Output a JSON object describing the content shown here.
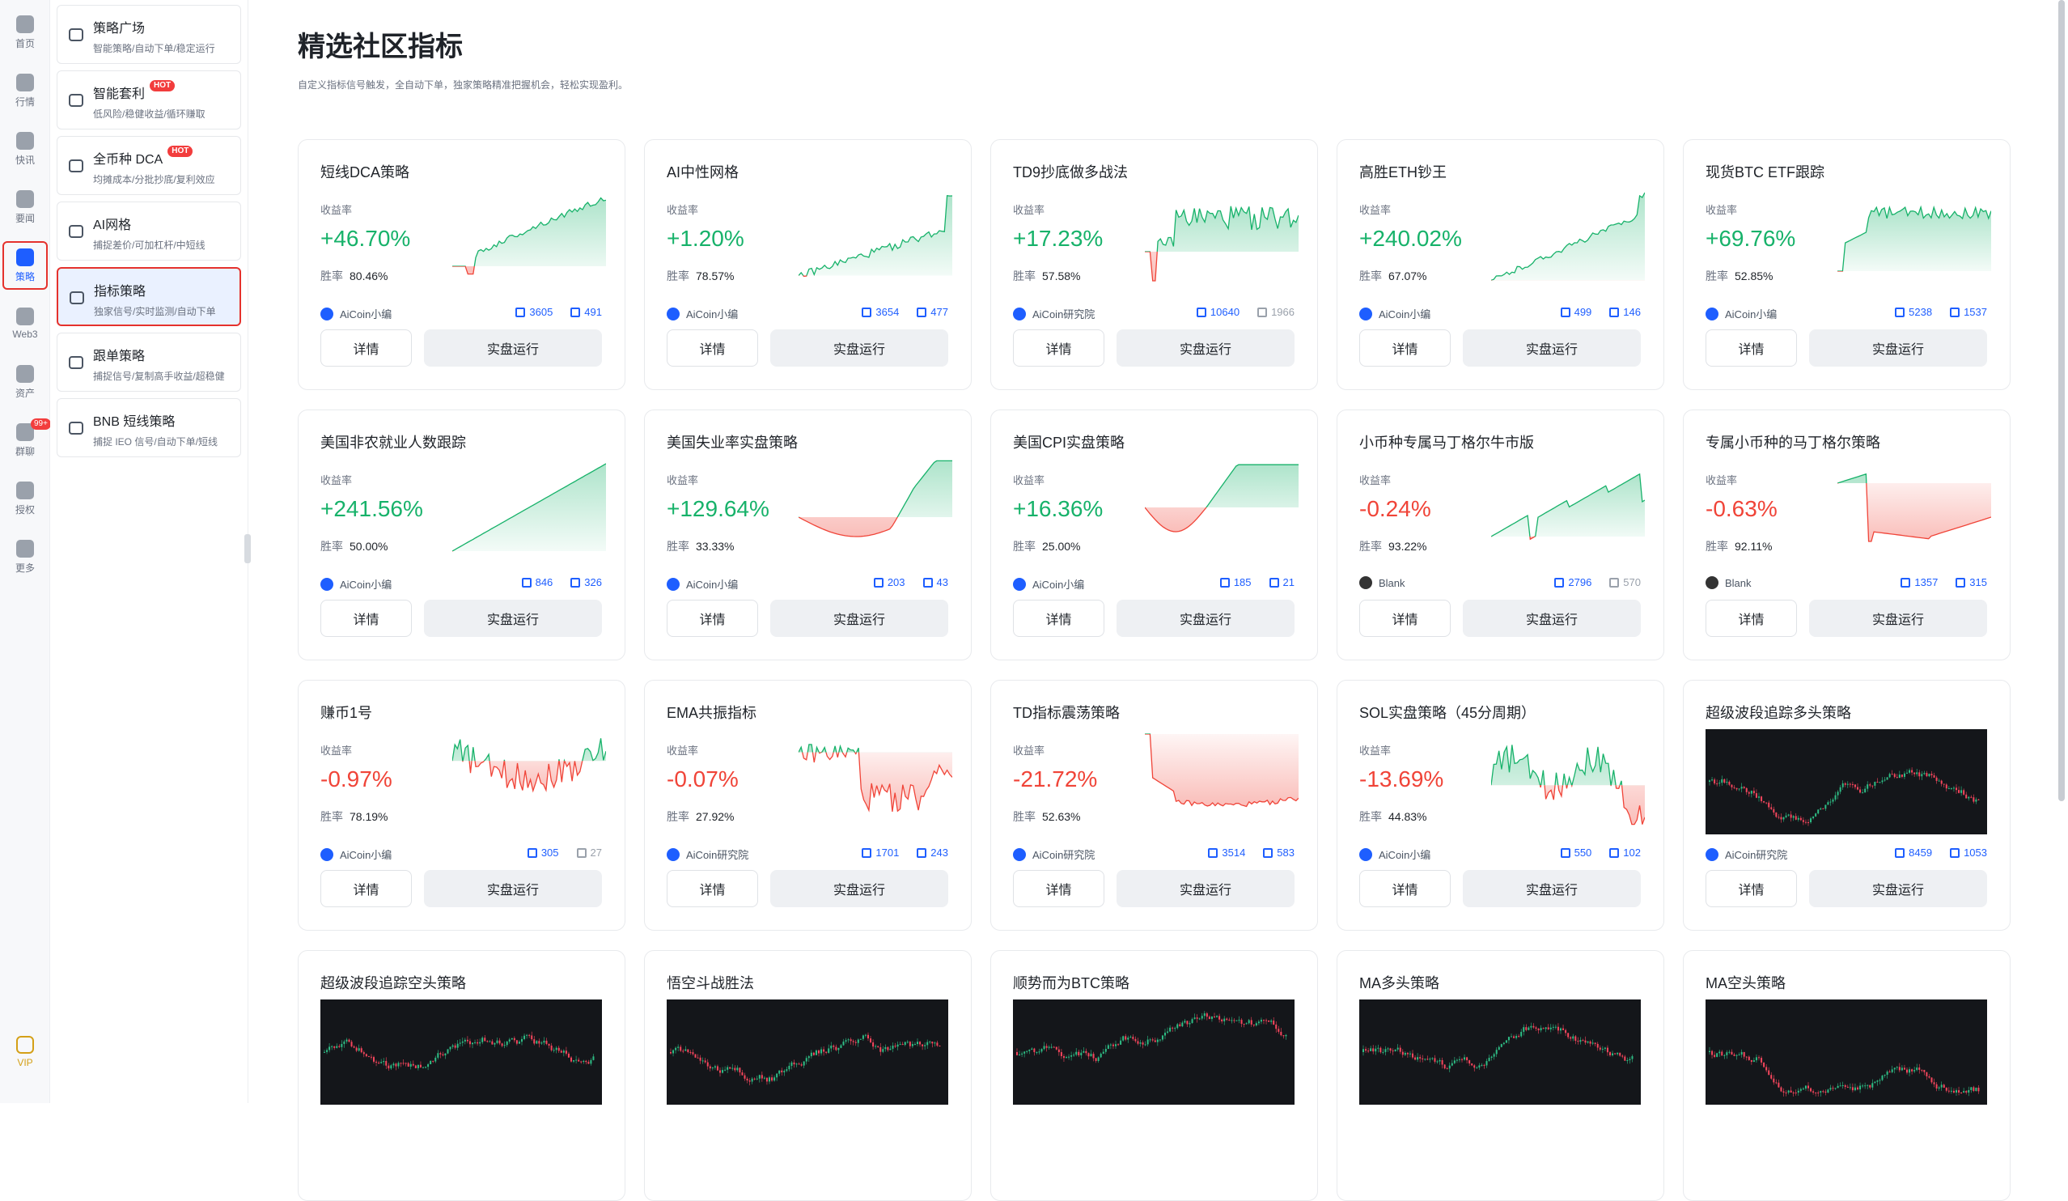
{
  "rail": [
    {
      "label": "首页",
      "icon": "home-icon"
    },
    {
      "label": "行情",
      "icon": "market-icon"
    },
    {
      "label": "快讯",
      "icon": "flash-news-icon"
    },
    {
      "label": "要闻",
      "icon": "news-icon"
    },
    {
      "label": "策略",
      "icon": "robot-icon",
      "active": true
    },
    {
      "label": "Web3",
      "icon": "web3-icon"
    },
    {
      "label": "资产",
      "icon": "wallet-icon"
    },
    {
      "label": "群聊",
      "icon": "chat-icon",
      "badge": "99+"
    },
    {
      "label": "授权",
      "icon": "auth-icon"
    },
    {
      "label": "更多",
      "icon": "more-icon"
    }
  ],
  "vip_label": "VIP",
  "submenu": [
    {
      "title": "策略广场",
      "sub": "智能策略/自动下单/稳定运行",
      "hot": false
    },
    {
      "title": "智能套利",
      "sub": "低风险/稳健收益/循环赚取",
      "hot": true
    },
    {
      "title": "全币种 DCA",
      "sub": "均摊成本/分批抄底/复利效应",
      "hot": true
    },
    {
      "title": "AI网格",
      "sub": "捕捉差价/可加杠杆/中短线",
      "hot": false
    },
    {
      "title": "指标策略",
      "sub": "独家信号/实时监测/自动下单",
      "hot": false,
      "active": true
    },
    {
      "title": "跟单策略",
      "sub": "捕捉信号/复制高手收益/超稳健",
      "hot": false
    },
    {
      "title": "BNB 短线策略",
      "sub": "捕捉 IEO 信号/自动下单/短线",
      "hot": false
    }
  ],
  "hot_label": "HOT",
  "page": {
    "title": "精选社区指标",
    "desc": "自定义指标信号触发，全自动下单，独家策略精准把握机会，轻松实现盈利。"
  },
  "labels": {
    "yield": "收益率",
    "win": "胜率",
    "detail": "详情",
    "run": "实盘运行"
  },
  "colors": {
    "up": "#17b26a",
    "down": "#f04438",
    "accent": "#1e5eff"
  },
  "cards": [
    {
      "name": "短线DCA策略",
      "rate": "+46.70%",
      "dir": "up",
      "win": "80.46%",
      "author": "AiCoin小编",
      "s1": "3605",
      "s2": "491",
      "s2_grey": false,
      "chart": "area",
      "shape": "dipRise"
    },
    {
      "name": "AI中性网格",
      "rate": "+1.20%",
      "dir": "up",
      "win": "78.57%",
      "author": "AiCoin小编",
      "s1": "3654",
      "s2": "477",
      "s2_grey": false,
      "chart": "area",
      "shape": "slowRise"
    },
    {
      "name": "TD9抄底做多战法",
      "rate": "+17.23%",
      "dir": "up",
      "win": "57.58%",
      "author": "AiCoin研究院",
      "s1": "10640",
      "s2": "1966",
      "s2_grey": true,
      "chart": "area",
      "shape": "jumpFlat"
    },
    {
      "name": "高胜ETH钞王",
      "rate": "+240.02%",
      "dir": "up",
      "win": "67.07%",
      "author": "AiCoin小编",
      "s1": "499",
      "s2": "146",
      "s2_grey": false,
      "chart": "area",
      "shape": "steadyRise"
    },
    {
      "name": "现货BTC ETF跟踪",
      "rate": "+69.76%",
      "dir": "up",
      "win": "52.85%",
      "author": "AiCoin小编",
      "s1": "5238",
      "s2": "1537",
      "s2_grey": false,
      "chart": "area",
      "shape": "jumpFlat2"
    },
    {
      "name": "美国非农就业人数跟踪",
      "rate": "+241.56%",
      "dir": "up",
      "win": "50.00%",
      "author": "AiCoin小编",
      "s1": "846",
      "s2": "326",
      "s2_grey": false,
      "chart": "area",
      "shape": "linear"
    },
    {
      "name": "美国失业率实盘策略",
      "rate": "+129.64%",
      "dir": "up",
      "win": "33.33%",
      "author": "AiCoin小编",
      "s1": "203",
      "s2": "43",
      "s2_grey": false,
      "chart": "area",
      "shape": "bowlUp"
    },
    {
      "name": "美国CPI实盘策略",
      "rate": "+16.36%",
      "dir": "up",
      "win": "25.00%",
      "author": "AiCoin小编",
      "s1": "185",
      "s2": "21",
      "s2_grey": false,
      "chart": "area",
      "shape": "dipSurge"
    },
    {
      "name": "小币种专属马丁格尔牛市版",
      "rate": "-0.24%",
      "dir": "down",
      "win": "93.22%",
      "author": "Blank",
      "s1": "2796",
      "s2": "570",
      "s2_grey": true,
      "chart": "area",
      "shape": "sawUp",
      "avatar_dark": true
    },
    {
      "name": "专属小币种的马丁格尔策略",
      "rate": "-0.63%",
      "dir": "down",
      "win": "92.11%",
      "author": "Blank",
      "s1": "1357",
      "s2": "315",
      "s2_grey": false,
      "chart": "area",
      "shape": "dropRecover",
      "avatar_dark": true
    },
    {
      "name": "赚币1号",
      "rate": "-0.97%",
      "dir": "down",
      "win": "78.19%",
      "author": "AiCoin小编",
      "s1": "305",
      "s2": "27",
      "s2_grey": true,
      "chart": "area",
      "shape": "noisyDown"
    },
    {
      "name": "EMA共振指标",
      "rate": "-0.07%",
      "dir": "down",
      "win": "27.92%",
      "author": "AiCoin研究院",
      "s1": "1701",
      "s2": "243",
      "s2_grey": false,
      "chart": "area",
      "shape": "noisyMix"
    },
    {
      "name": "TD指标震荡策略",
      "rate": "-21.72%",
      "dir": "down",
      "win": "52.63%",
      "author": "AiCoin研究院",
      "s1": "3514",
      "s2": "583",
      "s2_grey": false,
      "chart": "area",
      "shape": "dropDown"
    },
    {
      "name": "SOL实盘策略（45分周期）",
      "rate": "-13.69%",
      "dir": "down",
      "win": "44.83%",
      "author": "AiCoin小编",
      "s1": "550",
      "s2": "102",
      "s2_grey": false,
      "chart": "area",
      "shape": "noisyMix2"
    },
    {
      "name": "超级波段追踪多头策略",
      "rate": "",
      "dir": "up",
      "win": "",
      "author": "AiCoin研究院",
      "s1": "8459",
      "s2": "1053",
      "s2_grey": false,
      "chart": "kline",
      "seed": 3
    },
    {
      "name": "超级波段追踪空头策略",
      "rate": "",
      "dir": "up",
      "win": "",
      "author": "",
      "s1": "",
      "s2": "",
      "chart": "kline",
      "seed": 7
    },
    {
      "name": "悟空斗战胜法",
      "rate": "",
      "dir": "up",
      "win": "",
      "author": "",
      "s1": "",
      "s2": "",
      "chart": "kline",
      "seed": 11
    },
    {
      "name": "顺势而为BTC策略",
      "rate": "",
      "dir": "up",
      "win": "",
      "author": "",
      "s1": "",
      "s2": "",
      "chart": "kline",
      "seed": 17
    },
    {
      "name": "MA多头策略",
      "rate": "",
      "dir": "up",
      "win": "",
      "author": "",
      "s1": "",
      "s2": "",
      "chart": "kline",
      "seed": 23
    },
    {
      "name": "MA空头策略",
      "rate": "",
      "dir": "up",
      "win": "",
      "author": "",
      "s1": "",
      "s2": "",
      "chart": "kline",
      "seed": 29
    }
  ]
}
